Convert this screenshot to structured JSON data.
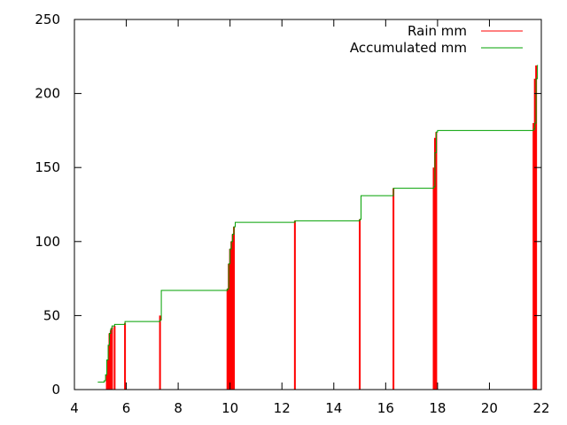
{
  "chart_data": {
    "type": "line",
    "title": "",
    "xlabel": "",
    "ylabel": "",
    "xlim": [
      4,
      22
    ],
    "ylim": [
      0,
      250
    ],
    "xticks": [
      4,
      6,
      8,
      10,
      12,
      14,
      16,
      18,
      20,
      22
    ],
    "yticks": [
      0,
      50,
      100,
      150,
      200,
      250
    ],
    "grid": false,
    "legend_position": "top-right",
    "series": [
      {
        "name": "Rain mm",
        "style": "impulses",
        "color": "#ff0000",
        "x": [
          5.25,
          5.3,
          5.35,
          5.4,
          5.45,
          5.55,
          5.95,
          7.3,
          9.9,
          9.95,
          10.0,
          10.05,
          10.1,
          10.15,
          12.5,
          15.0,
          16.3,
          17.85,
          17.9,
          17.95,
          21.7,
          21.75,
          21.8
        ],
        "values": [
          10,
          20,
          38,
          40,
          42,
          43,
          45,
          50,
          68,
          85,
          95,
          100,
          105,
          110,
          114,
          115,
          136,
          150,
          170,
          174,
          180,
          210,
          219
        ]
      },
      {
        "name": "Accumulated mm",
        "style": "steps",
        "color": "#00a000",
        "x": [
          4.9,
          5.15,
          5.2,
          5.25,
          5.3,
          5.35,
          5.4,
          5.45,
          5.55,
          5.95,
          7.3,
          7.35,
          9.9,
          9.95,
          10.0,
          10.05,
          10.1,
          10.15,
          10.2,
          12.5,
          15.0,
          15.05,
          16.3,
          17.85,
          17.9,
          17.95,
          18.0,
          21.7,
          21.75,
          21.8,
          21.85
        ],
        "values": [
          5,
          6,
          10,
          20,
          30,
          38,
          41,
          43,
          44,
          46,
          47,
          67,
          68,
          85,
          95,
          100,
          105,
          110,
          113,
          114,
          115,
          131,
          136,
          137,
          160,
          174,
          175,
          176,
          180,
          210,
          219
        ]
      }
    ]
  }
}
